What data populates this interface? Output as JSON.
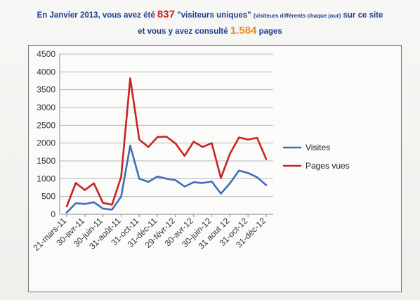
{
  "header": {
    "line1_prefix": "En Janvier 2013, vous avez été ",
    "visitors_count": "837",
    "line1_quote": " \"visiteurs uniques\" ",
    "line1_small": "(visiteurs différents chaque jour)",
    "line1_suffix": " sur ce site",
    "line2_prefix": "et vous y avez consulté ",
    "pages_count": "1.584",
    "line2_suffix": " pages"
  },
  "colors": {
    "header_text": "#1f3c8f",
    "visitors_highlight": "#d41e1e",
    "pages_highlight": "#f08a1c",
    "visites_series": "#3f6fb5",
    "pages_vues_series": "#c82424"
  },
  "chart_data": {
    "type": "line",
    "title": "",
    "xlabel": "",
    "ylabel": "",
    "ylim": [
      0,
      4500
    ],
    "yticks": [
      0,
      500,
      1000,
      1500,
      2000,
      2500,
      3000,
      3500,
      4000,
      4500
    ],
    "grid": true,
    "legend_position": "right",
    "x_tick_labels": [
      "21-mars-11",
      "30-avr-11",
      "30-juin-11",
      "31-août-11",
      "31-oct-11",
      "31-déc-11",
      "29-févr-12",
      "30-avr-12",
      "30-juin-12",
      "31 aout 12",
      "31-oct-12",
      "31-déc-12"
    ],
    "series": [
      {
        "name": "Visites",
        "values": [
          50,
          310,
          290,
          340,
          160,
          130,
          500,
          1930,
          1000,
          910,
          1060,
          1000,
          960,
          780,
          900,
          880,
          920,
          580,
          870,
          1230,
          1160,
          1040,
          820
        ]
      },
      {
        "name": "Pages vues",
        "values": [
          220,
          880,
          680,
          870,
          320,
          270,
          1050,
          3820,
          2100,
          1890,
          2170,
          2180,
          1990,
          1640,
          2040,
          1890,
          2000,
          1020,
          1700,
          2160,
          2100,
          2150,
          1550
        ]
      }
    ]
  }
}
